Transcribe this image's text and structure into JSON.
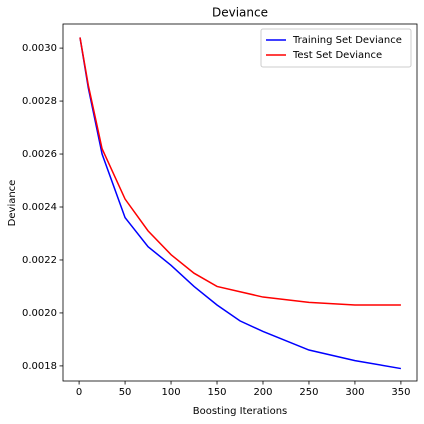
{
  "chart_data": {
    "type": "line",
    "title": "Deviance",
    "x_label": "Boosting Iterations",
    "y_label": "Deviance",
    "x": [
      1,
      10,
      25,
      50,
      75,
      100,
      125,
      150,
      175,
      200,
      250,
      300,
      350
    ],
    "series": [
      {
        "name": "Training Set Deviance",
        "color": "#0000ff",
        "values": [
          0.00304,
          0.00285,
          0.0026,
          0.00236,
          0.00225,
          0.00218,
          0.0021,
          0.00203,
          0.00197,
          0.00193,
          0.00186,
          0.00182,
          0.00179
        ]
      },
      {
        "name": "Test Set Deviance",
        "color": "#ff0000",
        "values": [
          0.00304,
          0.00286,
          0.00262,
          0.00243,
          0.00231,
          0.00222,
          0.00215,
          0.0021,
          0.00208,
          0.00206,
          0.00204,
          0.00203,
          0.00203
        ]
      }
    ],
    "xlim": [
      -17.5,
      367.5
    ],
    "xticks": [
      0,
      50,
      100,
      150,
      200,
      250,
      300,
      350
    ],
    "ylim": [
      0.001743,
      0.003091
    ],
    "yticks": [
      {
        "value": 0.0018,
        "label": "0.0018"
      },
      {
        "value": 0.002,
        "label": "0.0020"
      },
      {
        "value": 0.0022,
        "label": "0.0022"
      },
      {
        "value": 0.0024,
        "label": "0.0024"
      },
      {
        "value": 0.0026,
        "label": "0.0026"
      },
      {
        "value": 0.0028,
        "label": "0.0028"
      },
      {
        "value": 0.003,
        "label": "0.0030"
      }
    ],
    "legend": "upper right",
    "grid": false
  }
}
